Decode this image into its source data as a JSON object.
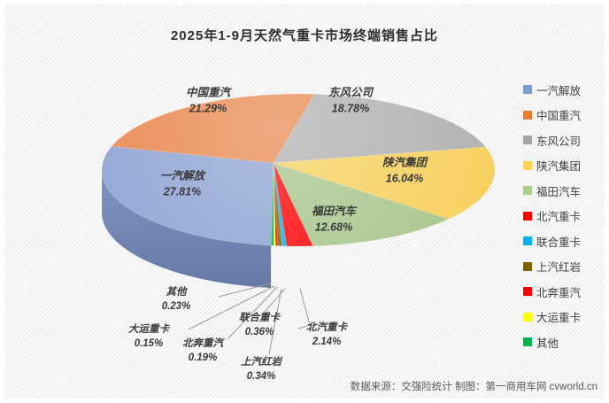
{
  "source_note": "数据来源：交强险统计 制图：第一商用车网 cvworld.cn",
  "chart_data": {
    "type": "pie",
    "style": "3d",
    "title": "2025年1-9月天然气重卡市场终端销售占比",
    "unit": "percent",
    "direction": "clockwise",
    "start_angle_deg": 188,
    "legend_position": "right",
    "grid": false,
    "slices": [
      {
        "name": "一汽解放",
        "value": 27.81,
        "label": "27.81%",
        "color": "#8CA2D3",
        "wall_color": "#7186B8",
        "legend_color": "#7C9CD3"
      },
      {
        "name": "中国重汽",
        "value": 21.29,
        "label": "21.29%",
        "color": "#E8864B",
        "wall_color": "#C05E24",
        "legend_color": "#ED7D31"
      },
      {
        "name": "东风公司",
        "value": 18.78,
        "label": "18.78%",
        "color": "#AFAFAF",
        "wall_color": "#8A8A8A",
        "legend_color": "#A5A5A5"
      },
      {
        "name": "陕汽集团",
        "value": 16.04,
        "label": "16.04%",
        "color": "#F6CE58",
        "wall_color": "#79682A",
        "legend_color": "#FFD34D"
      },
      {
        "name": "福田汽车",
        "value": 12.68,
        "label": "12.68%",
        "color": "#A6C489",
        "wall_color": "#5E7547",
        "legend_color": "#A9D18E"
      },
      {
        "name": "北汽重卡",
        "value": 2.14,
        "label": "2.14%",
        "color": "#FE0000",
        "wall_color": "#AF0B00",
        "legend_color": "#FF0000"
      },
      {
        "name": "联合重卡",
        "value": 0.36,
        "label": "0.36%",
        "color": "#00B0F0",
        "wall_color": "#0080B0",
        "legend_color": "#00B0F0"
      },
      {
        "name": "上汽红岩",
        "value": 0.34,
        "label": "0.34%",
        "color": "#7F6000",
        "wall_color": "#594300",
        "legend_color": "#7F6000"
      },
      {
        "name": "北奔重汽",
        "value": 0.19,
        "label": "0.19%",
        "color": "#E40000",
        "wall_color": "#9B0000",
        "legend_color": "#FF0000"
      },
      {
        "name": "大运重卡",
        "value": 0.15,
        "label": "0.15%",
        "color": "#FFFF00",
        "wall_color": "#B5B500",
        "legend_color": "#FFFF00"
      },
      {
        "name": "其他",
        "value": 0.23,
        "label": "0.23%",
        "color": "#00B050",
        "wall_color": "#007A38",
        "legend_color": "#00B050"
      }
    ]
  }
}
